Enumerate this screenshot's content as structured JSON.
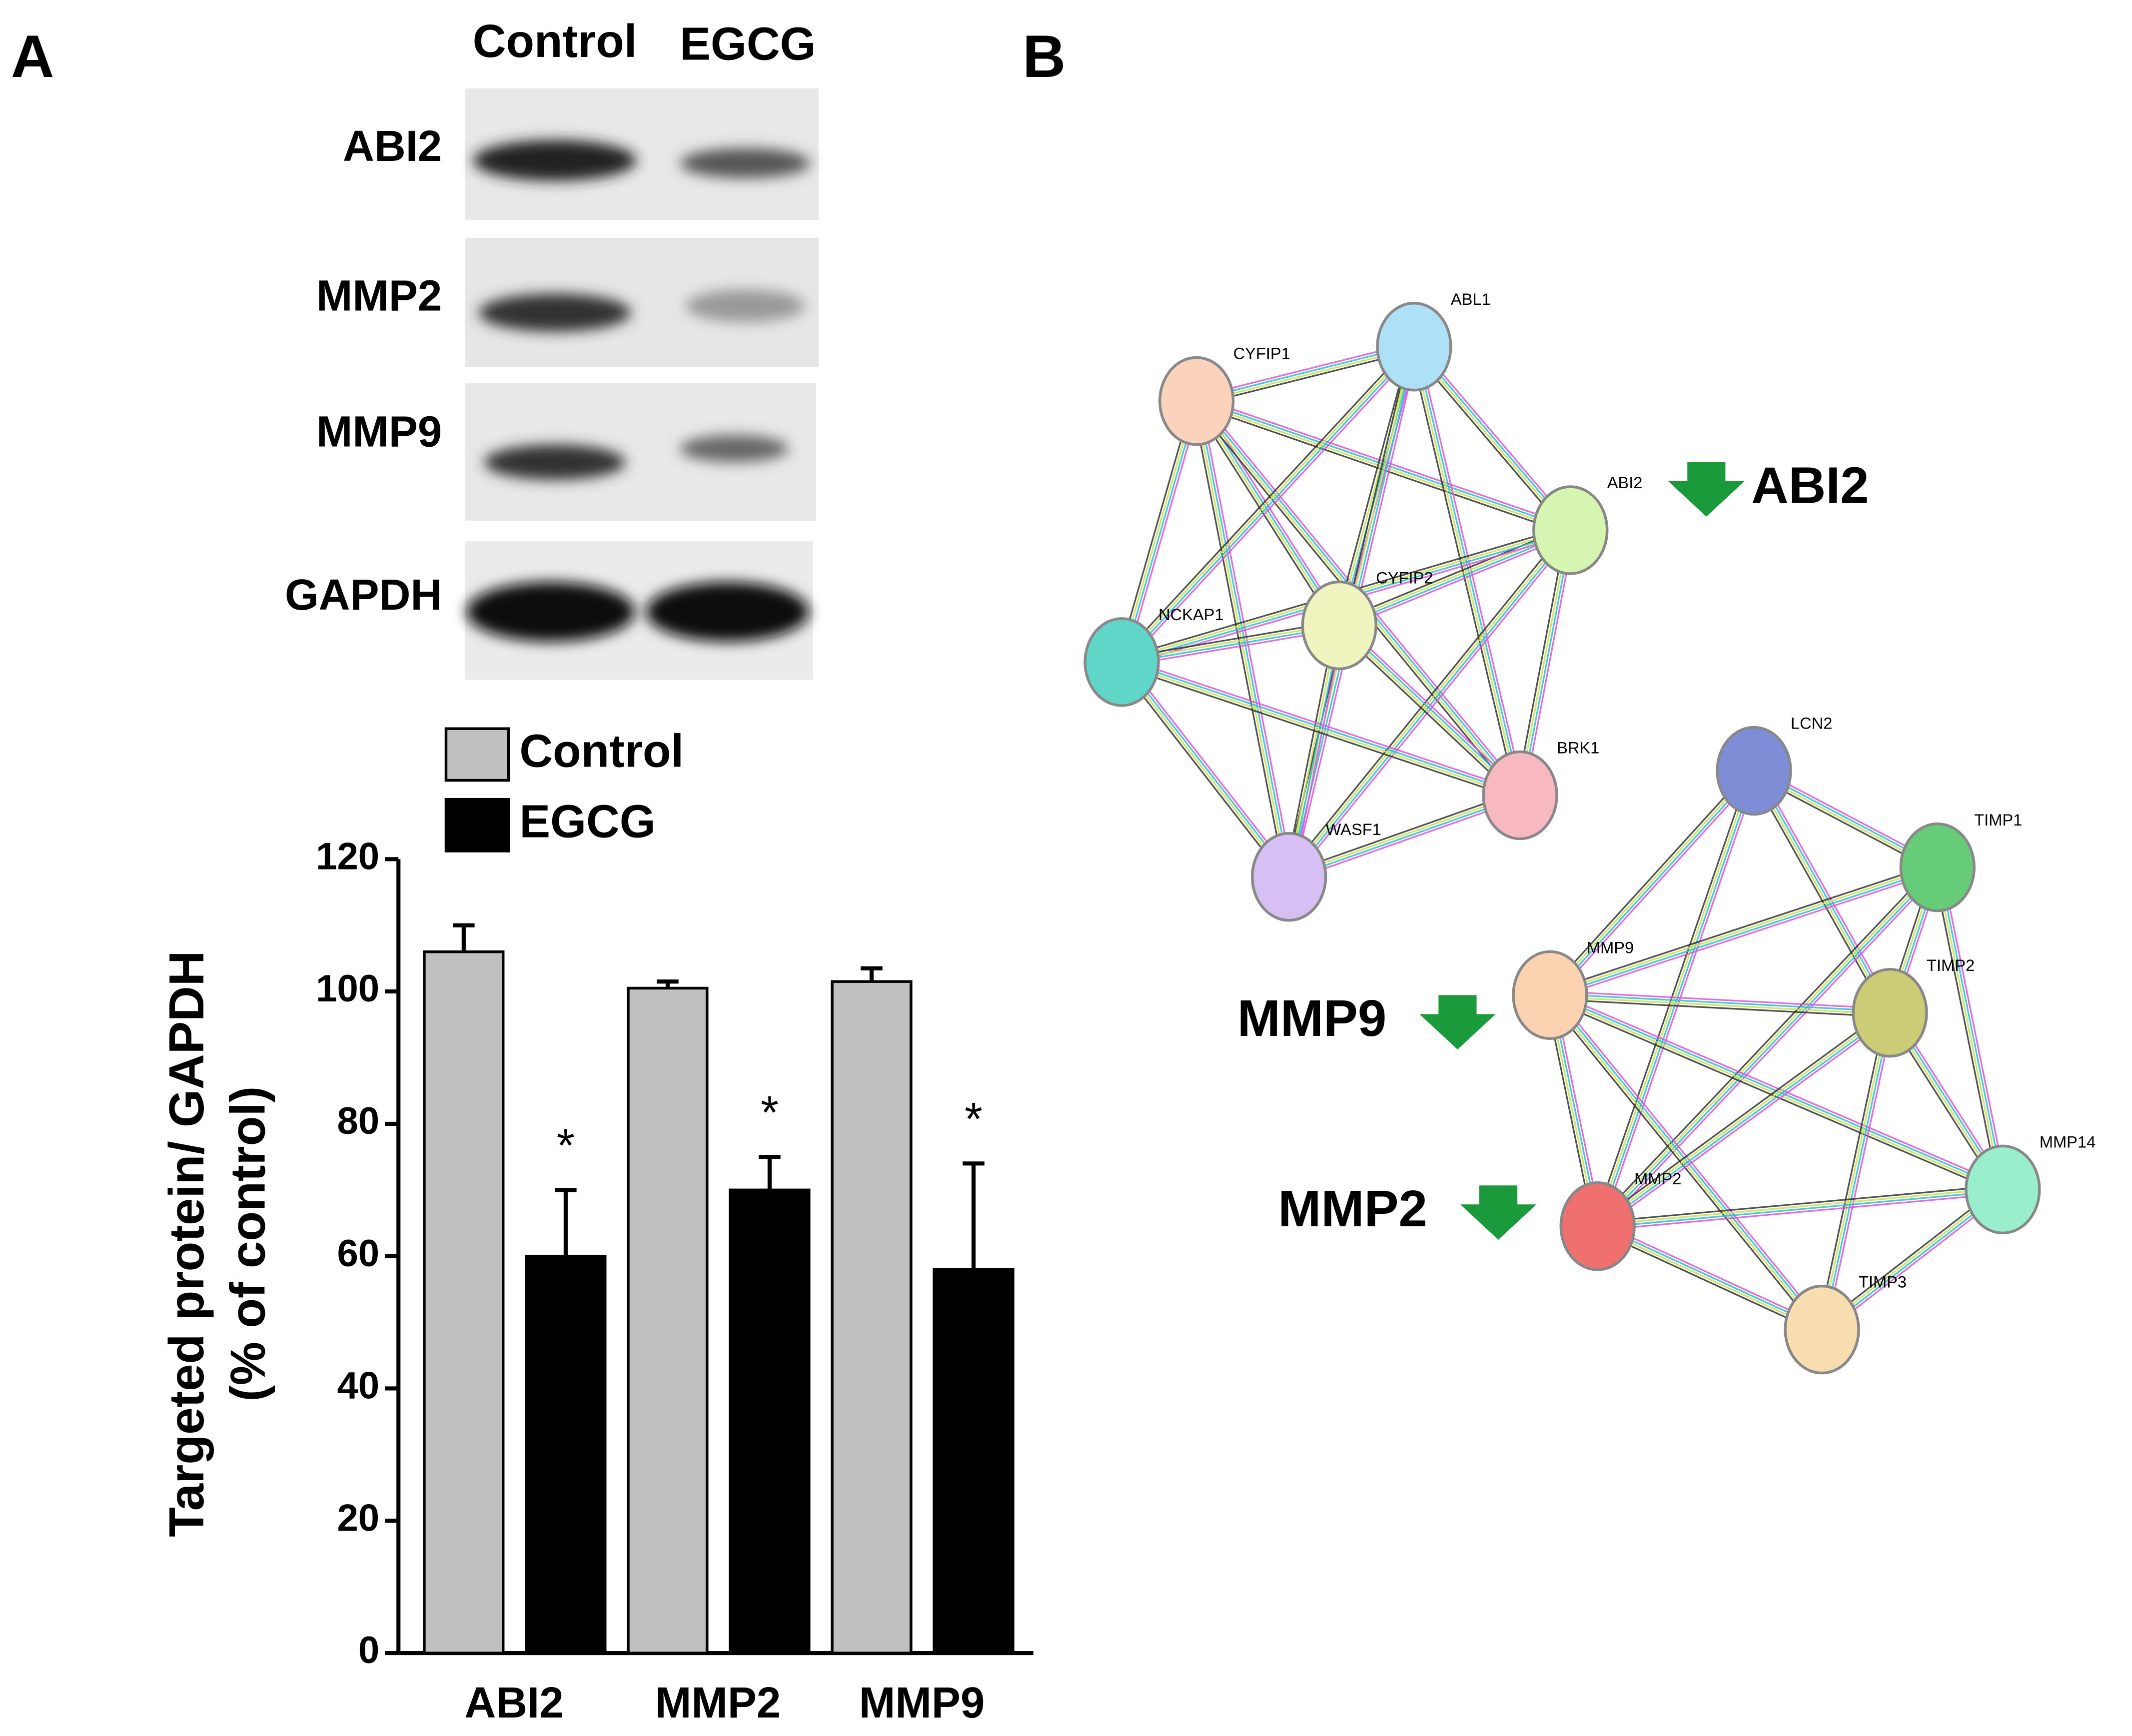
{
  "panel_labels": [
    "A",
    "B"
  ],
  "blot": {
    "columns": [
      "Control",
      "EGCG"
    ],
    "rows": [
      "ABI2",
      "MMP2",
      "MMP9",
      "GAPDH"
    ]
  },
  "chart_data": {
    "type": "bar",
    "categories": [
      "ABI2",
      "MMP2",
      "MMP9"
    ],
    "series": [
      {
        "name": "Control",
        "color": "#c0c0c0",
        "values": [
          106,
          100.5,
          101.5
        ],
        "errors": [
          4,
          1,
          2
        ]
      },
      {
        "name": "EGCG",
        "color": "#000000",
        "values": [
          60,
          70,
          58
        ],
        "errors": [
          10,
          5,
          16
        ]
      }
    ],
    "annotations": [
      "*",
      "*",
      "*"
    ],
    "ylabel": [
      "Targeted protein/ GAPDH",
      "(% of control)"
    ],
    "ylim": [
      0,
      120
    ],
    "yticks": [
      0,
      20,
      40,
      60,
      80,
      100,
      120
    ],
    "grid": false
  },
  "network": {
    "nodes": [
      {
        "label": "CYFIP1",
        "color": "#fbd3bd"
      },
      {
        "label": "ABL1",
        "color": "#aee0f7"
      },
      {
        "label": "ABI2",
        "color": "#d6f5b0"
      },
      {
        "label": "CYFIP2",
        "color": "#f0f5c0"
      },
      {
        "label": "NCKAP1",
        "color": "#5fd6c8"
      },
      {
        "label": "BRK1",
        "color": "#f8b8c0"
      },
      {
        "label": "WASF1",
        "color": "#d6bff2"
      },
      {
        "label": "LCN2",
        "color": "#7e8ed6"
      },
      {
        "label": "TIMP1",
        "color": "#66cc77"
      },
      {
        "label": "MMP9",
        "color": "#fbd3b0"
      },
      {
        "label": "TIMP2",
        "color": "#cccc77"
      },
      {
        "label": "MMP14",
        "color": "#99eecc"
      },
      {
        "label": "MMP2",
        "color": "#f07070"
      },
      {
        "label": "TIMP3",
        "color": "#f8ddb0"
      }
    ],
    "highlights": [
      "ABI2",
      "MMP9",
      "MMP2"
    ]
  }
}
